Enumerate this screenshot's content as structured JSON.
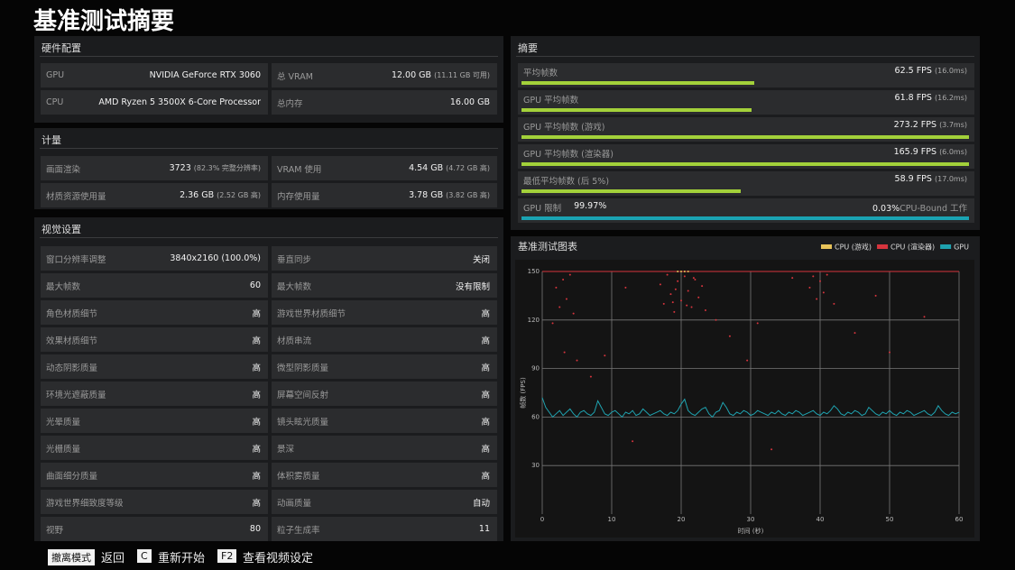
{
  "title": "基准测试摘要",
  "hardware": {
    "title": "硬件配置",
    "rows": [
      [
        {
          "label": "GPU",
          "value": "NVIDIA GeForce RTX 3060"
        },
        {
          "label": "总 VRAM",
          "value": "12.00 GB",
          "note": "(11.11 GB 可用)"
        }
      ],
      [
        {
          "label": "CPU",
          "value": "AMD Ryzen 5 3500X 6-Core Processor"
        },
        {
          "label": "总内存",
          "value": "16.00 GB"
        }
      ]
    ]
  },
  "metrics": {
    "title": "计量",
    "rows": [
      [
        {
          "label": "画面渲染",
          "value": "3723",
          "note": "(82.3% 完整分辨率)"
        },
        {
          "label": "VRAM 使用",
          "value": "4.54 GB",
          "note": "(4.72 GB 高)"
        }
      ],
      [
        {
          "label": "材质资源使用量",
          "value": "2.36 GB",
          "note": "(2.52 GB 高)"
        },
        {
          "label": "内存使用量",
          "value": "3.78 GB",
          "note": "(3.82 GB 高)"
        }
      ]
    ]
  },
  "settings": {
    "title": "视觉设置",
    "rows": [
      [
        {
          "label": "窗口分辨率调整",
          "value": "3840x2160 (100.0%)"
        },
        {
          "label": "垂直同步",
          "value": "关闭"
        }
      ],
      [
        {
          "label": "最大帧数",
          "value": "60"
        },
        {
          "label": "最大帧数",
          "value": "没有限制"
        }
      ],
      [
        {
          "label": "角色材质细节",
          "value": "高"
        },
        {
          "label": "游戏世界材质细节",
          "value": "高"
        }
      ],
      [
        {
          "label": "效果材质细节",
          "value": "高"
        },
        {
          "label": "材质串流",
          "value": "高"
        }
      ],
      [
        {
          "label": "动态阴影质量",
          "value": "高"
        },
        {
          "label": "微型阴影质量",
          "value": "高"
        }
      ],
      [
        {
          "label": "环境光遮蔽质量",
          "value": "高"
        },
        {
          "label": "屏幕空间反射",
          "value": "高"
        }
      ],
      [
        {
          "label": "光晕质量",
          "value": "高"
        },
        {
          "label": "镜头眩光质量",
          "value": "高"
        }
      ],
      [
        {
          "label": "光栅质量",
          "value": "高"
        },
        {
          "label": "景深",
          "value": "高"
        }
      ],
      [
        {
          "label": "曲面细分质量",
          "value": "高"
        },
        {
          "label": "体积雾质量",
          "value": "高"
        }
      ],
      [
        {
          "label": "游戏世界细致度等级",
          "value": "高"
        },
        {
          "label": "动画质量",
          "value": "自动"
        }
      ],
      [
        {
          "label": "视野",
          "value": "80"
        },
        {
          "label": "粒子生成率",
          "value": "11"
        }
      ]
    ]
  },
  "summary": {
    "title": "摘要",
    "xlim": [
      0,
      120
    ],
    "color": "#a3d13a",
    "rows": [
      {
        "label": "平均帧数",
        "value": 62.5,
        "value_label": "62.5 FPS",
        "frametime": "(16.0ms)"
      },
      {
        "label": "GPU 平均帧数",
        "value": 61.8,
        "value_label": "61.8 FPS",
        "frametime": "(16.2ms)"
      },
      {
        "label": "GPU 平均帧数 (游戏)",
        "value": 273.2,
        "value_label": "273.2 FPS",
        "frametime": "(3.7ms)"
      },
      {
        "label": "GPU 平均帧数 (渲染器)",
        "value": 165.9,
        "value_label": "165.9 FPS",
        "frametime": "(6.0ms)"
      },
      {
        "label": "最低平均帧数 (后 5%)",
        "value": 58.9,
        "value_label": "58.9 FPS",
        "frametime": "(17.0ms)"
      }
    ],
    "gpu_limit": {
      "label": "GPU 限制",
      "value": 99.97,
      "value_label": "99.97%",
      "cpu_value": 0.03,
      "cpu_value_label": "0.03%",
      "cpu_label": "CPU-Bound 工作",
      "xlim": [
        0,
        100
      ],
      "color": "#1aa3b3"
    }
  },
  "chart_data": {
    "type": "scatter",
    "title": "基准测试图表",
    "xlabel": "时间 (秒)",
    "ylabel": "帧数 (FPS)",
    "xlim": [
      0,
      60
    ],
    "ylim": [
      0,
      150
    ],
    "xticks": [
      0,
      10,
      20,
      30,
      40,
      50,
      60
    ],
    "yticks": [
      30,
      60,
      90,
      120,
      150
    ],
    "grid": true,
    "legend": "upper right",
    "series": [
      {
        "name": "CPU (游戏)",
        "color": "#e8c35a",
        "x": [
          19.5,
          20,
          20.5,
          21
        ],
        "values": [
          150,
          150,
          150,
          150
        ]
      },
      {
        "name": "CPU (渲染器)",
        "color": "#d6343d",
        "x": [
          2,
          2.5,
          3,
          3.5,
          4,
          4.5,
          1.5,
          3.2,
          5,
          7,
          17,
          17.5,
          18,
          18.5,
          19,
          19.5,
          20,
          20.5,
          21,
          21.5,
          22,
          22.5,
          23,
          23.5,
          19.2,
          20.8,
          21.8,
          18.8,
          25,
          27,
          29.5,
          31,
          38.5,
          39,
          39.5,
          40,
          40.5,
          41,
          42,
          45,
          50,
          55,
          13,
          33,
          9,
          48,
          36,
          12
        ],
        "values": [
          140,
          128,
          145,
          133,
          148,
          124,
          118,
          100,
          95,
          85,
          142,
          130,
          148,
          136,
          125,
          144,
          132,
          147,
          138,
          128,
          145,
          134,
          141,
          126,
          139,
          129,
          146,
          131,
          120,
          110,
          95,
          118,
          140,
          147,
          133,
          144,
          137,
          148,
          130,
          112,
          100,
          122,
          45,
          40,
          98,
          135,
          146,
          140
        ]
      },
      {
        "name": "GPU",
        "color": "#1fa3b0",
        "line": true,
        "x": [
          0,
          0.5,
          1,
          1.5,
          2,
          2.5,
          3,
          3.5,
          4,
          4.5,
          5,
          5.5,
          6,
          6.5,
          7,
          7.5,
          8,
          8.5,
          9,
          9.5,
          10,
          10.5,
          11,
          11.5,
          12,
          12.5,
          13,
          13.5,
          14,
          14.5,
          15,
          15.5,
          16,
          16.5,
          17,
          17.5,
          18,
          18.5,
          19,
          19.5,
          20,
          20.5,
          21,
          21.5,
          22,
          22.5,
          23,
          23.5,
          24,
          24.5,
          25,
          25.5,
          26,
          26.5,
          27,
          27.5,
          28,
          28.5,
          29,
          29.5,
          30,
          30.5,
          31,
          31.5,
          32,
          32.5,
          33,
          33.5,
          34,
          34.5,
          35,
          35.5,
          36,
          36.5,
          37,
          37.5,
          38,
          38.5,
          39,
          39.5,
          40,
          40.5,
          41,
          41.5,
          42,
          42.5,
          43,
          43.5,
          44,
          44.5,
          45,
          45.5,
          46,
          46.5,
          47,
          47.5,
          48,
          48.5,
          49,
          49.5,
          50,
          50.5,
          51,
          51.5,
          52,
          52.5,
          53,
          53.5,
          54,
          54.5,
          55,
          55.5,
          56,
          56.5,
          57,
          57.5,
          58,
          58.5,
          59,
          59.5,
          60
        ],
        "values": [
          72,
          66,
          63,
          60,
          62,
          64,
          61,
          63,
          65,
          62,
          60,
          63,
          64,
          62,
          61,
          63,
          70,
          66,
          62,
          61,
          63,
          64,
          62,
          60,
          63,
          62,
          64,
          61,
          62,
          65,
          63,
          61,
          62,
          63,
          64,
          62,
          61,
          63,
          62,
          64,
          68,
          71,
          64,
          62,
          61,
          63,
          65,
          66,
          62,
          60,
          63,
          64,
          69,
          66,
          62,
          61,
          63,
          62,
          64,
          63,
          61,
          62,
          64,
          63,
          62,
          61,
          63,
          62,
          64,
          62,
          61,
          63,
          62,
          64,
          63,
          61,
          62,
          63,
          64,
          62,
          61,
          63,
          62,
          64,
          67,
          65,
          62,
          61,
          63,
          62,
          64,
          63,
          61,
          62,
          66,
          64,
          62,
          61,
          63,
          62,
          64,
          62,
          61,
          63,
          62,
          64,
          63,
          61,
          62,
          63,
          64,
          62,
          61,
          63,
          67,
          64,
          62,
          61,
          63,
          62,
          63
        ]
      }
    ]
  },
  "footer": [
    {
      "key": "撤离模式",
      "action": "返回"
    },
    {
      "key": "C",
      "action": "重新开始"
    },
    {
      "key": "F2",
      "action": "查看视频设定"
    }
  ]
}
